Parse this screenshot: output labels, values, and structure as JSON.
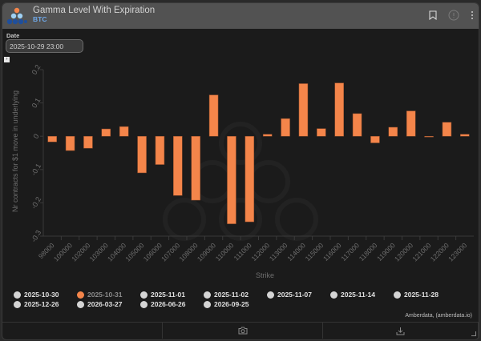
{
  "header": {
    "title": "Gamma Level With Expiration",
    "subtitle": "BTC",
    "icons": [
      "bookmark-icon",
      "info-icon",
      "more-vertical-icon"
    ]
  },
  "controls": {
    "date_label": "Date",
    "date_value": "2025-10-29 23:00",
    "expand_toggle": "›"
  },
  "colors": {
    "bar": "#f4854a",
    "bar_border": "#8a4a2a",
    "header_bg": "#525252",
    "panel_bg": "#1b1b1b",
    "subtitle": "#6fa8e8"
  },
  "chart_data": {
    "type": "bar",
    "title": "",
    "xlabel": "Strike",
    "ylabel": "Nr contracts for $1 move in underlying",
    "ylim": [
      -0.3,
      0.2
    ],
    "yticks": [
      0.2,
      0.1,
      0,
      -0.1,
      -0.2,
      -0.3
    ],
    "ytick_labels": [
      "0.2",
      "0.1",
      "0",
      "-0.1",
      "-0.2",
      "-0.3"
    ],
    "grid": false,
    "legend_position": "bottom",
    "categories": [
      "98000",
      "100000",
      "102000",
      "103000",
      "104000",
      "105000",
      "106000",
      "107000",
      "108000",
      "109000",
      "110000",
      "111000",
      "112000",
      "113000",
      "114000",
      "115000",
      "116000",
      "117000",
      "118000",
      "119000",
      "120000",
      "121000",
      "122000",
      "123000"
    ],
    "series": [
      {
        "name": "2025-10-31",
        "values": [
          -0.017,
          -0.043,
          -0.036,
          0.022,
          0.029,
          -0.11,
          -0.085,
          -0.178,
          -0.192,
          0.124,
          -0.263,
          -0.257,
          0.006,
          0.053,
          0.158,
          0.023,
          0.16,
          0.068,
          -0.02,
          0.027,
          0.076,
          -0.002,
          0.042,
          0.006
        ]
      }
    ]
  },
  "legend": {
    "rows": [
      [
        {
          "label": "2025-10-30",
          "active": false
        },
        {
          "label": "2025-10-31",
          "active": true
        },
        {
          "label": "2025-11-01",
          "active": false
        },
        {
          "label": "2025-11-02",
          "active": false
        },
        {
          "label": "2025-11-07",
          "active": false
        },
        {
          "label": "2025-11-14",
          "active": false
        },
        {
          "label": "2025-11-28",
          "active": false
        }
      ],
      [
        {
          "label": "2025-12-26",
          "active": false
        },
        {
          "label": "2026-03-27",
          "active": false
        },
        {
          "label": "2026-06-26",
          "active": false
        },
        {
          "label": "2026-09-25",
          "active": false
        }
      ]
    ]
  },
  "credit": "Amberdata, (amberdata.io)",
  "footer": {
    "buttons": [
      "camera-icon",
      "download-icon"
    ]
  }
}
